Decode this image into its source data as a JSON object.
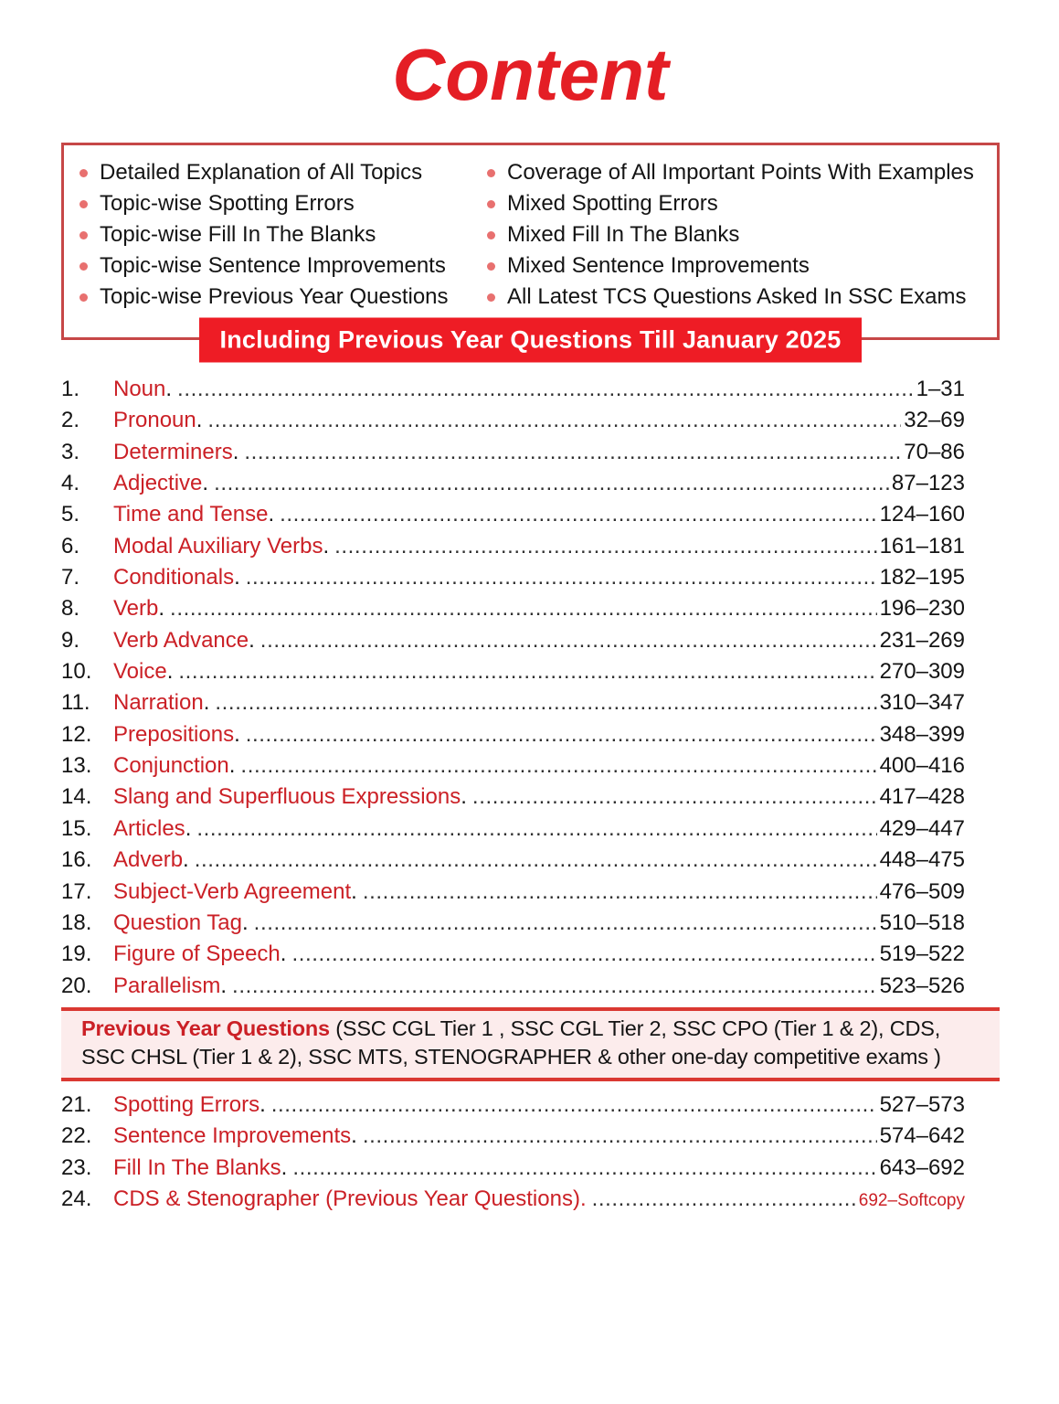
{
  "page": {
    "title": "Content"
  },
  "colors": {
    "title_red": "#e41e25",
    "chapter_red": "#cb2026",
    "banner_bg": "#ee1c25",
    "banner_text": "#ffffff",
    "bullet": "#e8706f",
    "box_border": "#c64747",
    "rule_red": "#da3832",
    "band_bg": "#fcecec",
    "text_black": "#141414",
    "dots": "#2f2f2f"
  },
  "features": {
    "left": [
      "Detailed Explanation of All Topics",
      "Topic-wise Spotting Errors",
      "Topic-wise Fill In The Blanks",
      "Topic-wise Sentence Improvements",
      "Topic-wise Previous Year Questions"
    ],
    "right": [
      "Coverage of All Important Points With Examples",
      "Mixed Spotting Errors",
      "Mixed Fill In The Blanks",
      "Mixed Sentence Improvements",
      "All Latest TCS Questions Asked In SSC Exams"
    ]
  },
  "banner": {
    "label": "Including Previous Year Questions Till January 2025"
  },
  "toc": {
    "chapters": [
      {
        "num": "1.",
        "title": "Noun",
        "sep": ".",
        "pages": "1–31"
      },
      {
        "num": "2.",
        "title": "Pronoun",
        "sep": ".",
        "pages": "32–69"
      },
      {
        "num": "3.",
        "title": "Determiners",
        "sep": ".",
        "pages": "70–86"
      },
      {
        "num": "4.",
        "title": "Adjective",
        "sep": ".",
        "pages": "87–123"
      },
      {
        "num": "5.",
        "title": "Time and Tense",
        "sep": ".",
        "pages": "124–160"
      },
      {
        "num": "6.",
        "title": "Modal Auxiliary Verbs",
        "sep": ".",
        "pages": "161–181"
      },
      {
        "num": "7.",
        "title": "Conditionals",
        "sep": ".",
        "pages": "182–195"
      },
      {
        "num": "8.",
        "title": "Verb",
        "sep": ".",
        "pages": "196–230"
      },
      {
        "num": "9.",
        "title": "Verb Advance",
        "sep": ".",
        "pages": "231–269"
      },
      {
        "num": "10.",
        "title": "Voice",
        "sep": ".",
        "pages": "270–309"
      },
      {
        "num": "11.",
        "title": "Narration",
        "sep": ".",
        "pages": "310–347"
      },
      {
        "num": "12.",
        "title": "Prepositions",
        "sep": ".",
        "pages": "348–399"
      },
      {
        "num": "13.",
        "title": "Conjunction",
        "sep": ".",
        "pages": "400–416"
      },
      {
        "num": "14.",
        "title": "Slang and Superfluous Expressions",
        "sep": ".",
        "pages": "417–428"
      },
      {
        "num": "15.",
        "title": "Articles",
        "sep": ".",
        "pages": "429–447"
      },
      {
        "num": "16.",
        "title": "Adverb",
        "sep": ".",
        "pages": "448–475"
      },
      {
        "num": "17.",
        "title": "Subject-Verb Agreement",
        "sep": ".",
        "pages": "476–509"
      },
      {
        "num": "18.",
        "title": "Question Tag",
        "sep": ".",
        "pages": "510–518"
      },
      {
        "num": "19.",
        "title": "Figure of Speech",
        "sep": ".",
        "pages": "519–522"
      },
      {
        "num": "20.",
        "title": "Parallelism",
        "sep": ".",
        "pages": "523–526"
      }
    ],
    "divider": {
      "heading": "Previous Year Questions",
      "description": "(SSC CGL Tier 1 , SSC CGL Tier 2, SSC CPO (Tier 1 & 2), CDS, SSC CHSL (Tier 1 & 2), SSC MTS, STENOGRAPHER & other one-day competitive exams )"
    },
    "pyq_chapters": [
      {
        "num": "21.",
        "title": "Spotting Errors",
        "sep": ".",
        "pages": "527–573"
      },
      {
        "num": "22.",
        "title": "Sentence Improvements",
        "sep": ".",
        "pages": "574–642"
      },
      {
        "num": "23.",
        "title": "Fill In The Blanks",
        "sep": ".",
        "pages": "643–692"
      },
      {
        "num": "24.",
        "title": "CDS & Stenographer (Previous Year Questions).",
        "sep": "",
        "pages": "692–Softcopy",
        "pages_style": "red-small"
      }
    ]
  }
}
